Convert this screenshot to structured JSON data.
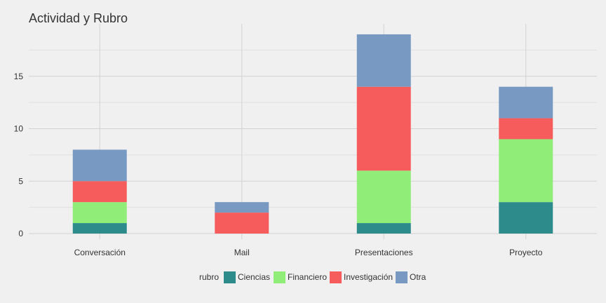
{
  "chart_data": {
    "type": "bar",
    "stacked": true,
    "title": "Actividad y Rubro",
    "xlabel": "",
    "ylabel": "",
    "categories": [
      "Conversación",
      "Mail",
      "Presentaciones",
      "Proyecto"
    ],
    "series": [
      {
        "name": "Ciencias",
        "color": "#2e8b8b",
        "values": [
          1,
          0,
          1,
          3
        ]
      },
      {
        "name": "Financiero",
        "color": "#90ee78",
        "values": [
          2,
          0,
          5,
          6
        ]
      },
      {
        "name": "Investigación",
        "color": "#f75c5c",
        "values": [
          2,
          2,
          8,
          2
        ]
      },
      {
        "name": "Otra",
        "color": "#7899c2",
        "values": [
          3,
          1,
          5,
          3
        ]
      }
    ],
    "ylim": [
      0,
      20
    ],
    "yticks": [
      0,
      5,
      10,
      15
    ],
    "grid": true,
    "legend": {
      "title": "rubro",
      "position": "bottom"
    }
  }
}
